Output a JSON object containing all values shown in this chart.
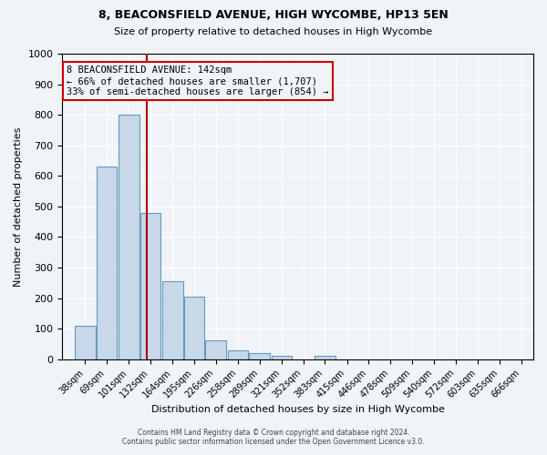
{
  "title1": "8, BEACONSFIELD AVENUE, HIGH WYCOMBE, HP13 5EN",
  "title2": "Size of property relative to detached houses in High Wycombe",
  "xlabel": "Distribution of detached houses by size in High Wycombe",
  "ylabel": "Number of detached properties",
  "bar_edges": [
    38,
    69,
    101,
    132,
    164,
    195,
    226,
    258,
    289,
    321,
    352,
    383,
    415,
    446,
    478,
    509,
    540,
    572,
    603,
    635,
    666
  ],
  "bar_heights": [
    110,
    630,
    800,
    480,
    255,
    205,
    63,
    30,
    20,
    10,
    0,
    10,
    0,
    0,
    0,
    0,
    0,
    0,
    0,
    0,
    0
  ],
  "bar_color": "#c8d8e8",
  "bar_edge_color": "#6699bb",
  "property_line_x": 142,
  "property_line_color": "#aa0000",
  "ylim": [
    0,
    1000
  ],
  "annotation_title": "8 BEACONSFIELD AVENUE: 142sqm",
  "annotation_line1": "← 66% of detached houses are smaller (1,707)",
  "annotation_line2": "33% of semi-detached houses are larger (854) →",
  "annotation_box_color": "#cc0000",
  "footnote1": "Contains HM Land Registry data © Crown copyright and database right 2024.",
  "footnote2": "Contains public sector information licensed under the Open Government Licence v3.0.",
  "background_color": "#f0f4f8",
  "grid_color": "#ffffff"
}
